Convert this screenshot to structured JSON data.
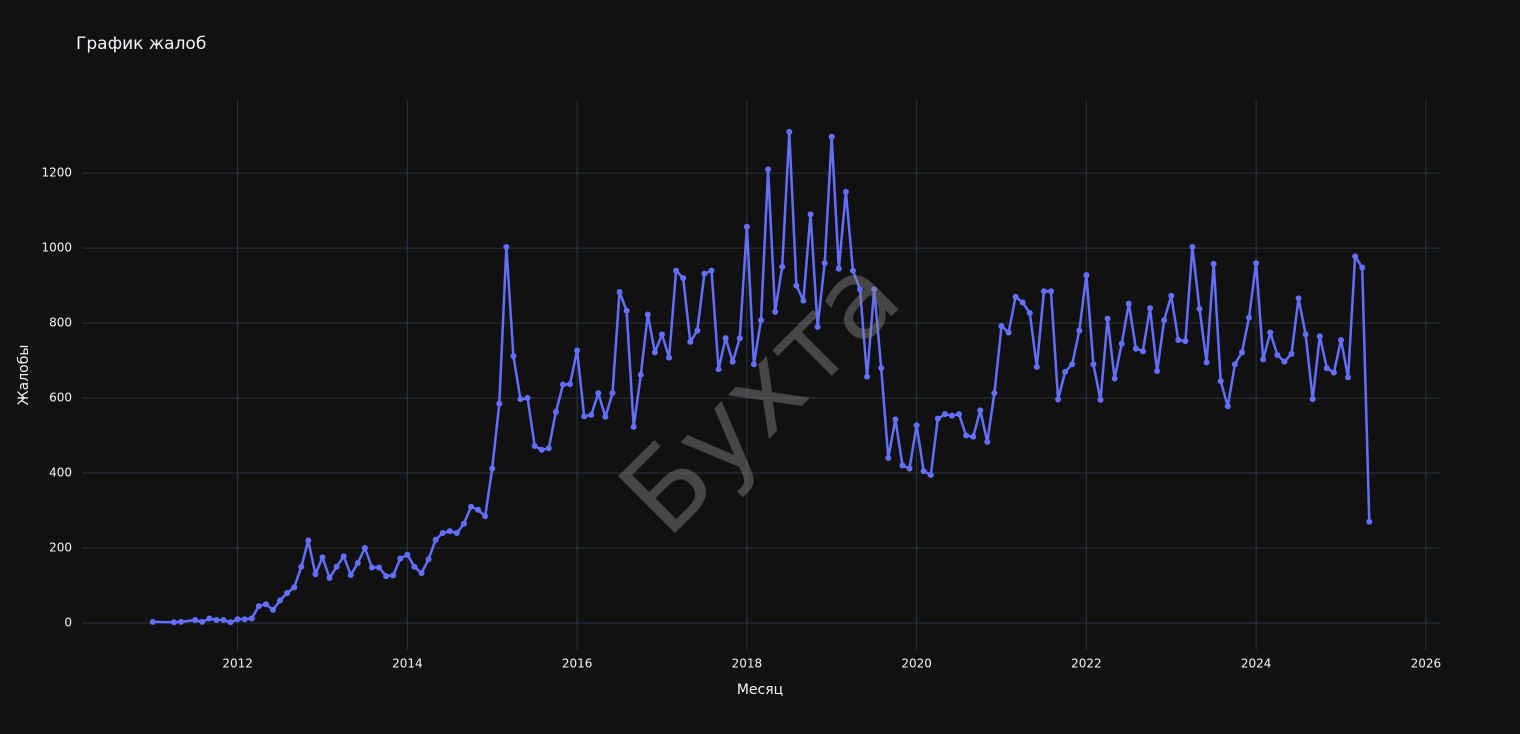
{
  "chart_data": {
    "type": "line",
    "title": "График жалоб",
    "xlabel": "Месяц",
    "ylabel": "Жалобы",
    "watermark": "Бухта",
    "color": "#636efa",
    "grid": true,
    "x": [
      "2011-01",
      "2011-04",
      "2011-05",
      "2011-07",
      "2011-08",
      "2011-09",
      "2011-10",
      "2011-11",
      "2011-12",
      "2012-01",
      "2012-02",
      "2012-03",
      "2012-04",
      "2012-05",
      "2012-06",
      "2012-07",
      "2012-08",
      "2012-09",
      "2012-10",
      "2012-11",
      "2012-12",
      "2013-01",
      "2013-02",
      "2013-03",
      "2013-04",
      "2013-05",
      "2013-06",
      "2013-07",
      "2013-08",
      "2013-09",
      "2013-10",
      "2013-11",
      "2013-12",
      "2014-01",
      "2014-02",
      "2014-03",
      "2014-04",
      "2014-05",
      "2014-06",
      "2014-07",
      "2014-08",
      "2014-09",
      "2014-10",
      "2014-11",
      "2014-12",
      "2015-01",
      "2015-02",
      "2015-03",
      "2015-04",
      "2015-05",
      "2015-06",
      "2015-07",
      "2015-08",
      "2015-09",
      "2015-10",
      "2015-11",
      "2015-12",
      "2016-01",
      "2016-02",
      "2016-03",
      "2016-04",
      "2016-05",
      "2016-06",
      "2016-07",
      "2016-08",
      "2016-09",
      "2016-10",
      "2016-11",
      "2016-12",
      "2017-01",
      "2017-02",
      "2017-03",
      "2017-04",
      "2017-05",
      "2017-06",
      "2017-07",
      "2017-08",
      "2017-09",
      "2017-10",
      "2017-11",
      "2017-12",
      "2018-01",
      "2018-02",
      "2018-03",
      "2018-04",
      "2018-05",
      "2018-06",
      "2018-07",
      "2018-08",
      "2018-09",
      "2018-10",
      "2018-11",
      "2018-12",
      "2019-01",
      "2019-02",
      "2019-03",
      "2019-04",
      "2019-05",
      "2019-06",
      "2019-07",
      "2019-08",
      "2019-09",
      "2019-10",
      "2019-11",
      "2019-12",
      "2020-01",
      "2020-02",
      "2020-03",
      "2020-04",
      "2020-05",
      "2020-06",
      "2020-07",
      "2020-08",
      "2020-09",
      "2020-10",
      "2020-11",
      "2020-12",
      "2021-01",
      "2021-02",
      "2021-03",
      "2021-04",
      "2021-05",
      "2021-06",
      "2021-07",
      "2021-08",
      "2021-09",
      "2021-10",
      "2021-11",
      "2021-12",
      "2022-01",
      "2022-02",
      "2022-03",
      "2022-04",
      "2022-05",
      "2022-06",
      "2022-07",
      "2022-08",
      "2022-09",
      "2022-10",
      "2022-11",
      "2022-12",
      "2023-01",
      "2023-02",
      "2023-03",
      "2023-04",
      "2023-05",
      "2023-06",
      "2023-07",
      "2023-08",
      "2023-09",
      "2023-10",
      "2023-11",
      "2023-12",
      "2024-01",
      "2024-02",
      "2024-03",
      "2024-04",
      "2024-05",
      "2024-06",
      "2024-07",
      "2024-08",
      "2024-09",
      "2024-10",
      "2024-11",
      "2024-12",
      "2025-01",
      "2025-02",
      "2025-03",
      "2025-04",
      "2025-05"
    ],
    "values": [
      3,
      2,
      3,
      8,
      3,
      12,
      8,
      8,
      2,
      10,
      10,
      12,
      45,
      50,
      35,
      60,
      80,
      95,
      150,
      220,
      130,
      175,
      120,
      150,
      178,
      128,
      160,
      200,
      148,
      148,
      125,
      127,
      172,
      182,
      150,
      133,
      170,
      222,
      240,
      245,
      240,
      265,
      310,
      302,
      285,
      412,
      585,
      1003,
      712,
      597,
      600,
      472,
      462,
      466,
      563,
      636,
      637,
      727,
      551,
      555,
      613,
      550,
      613,
      883,
      833,
      523,
      662,
      823,
      722,
      770,
      708,
      940,
      920,
      750,
      780,
      932,
      940,
      677,
      760,
      697,
      760,
      1057,
      690,
      808,
      1210,
      830,
      950,
      1310,
      900,
      860,
      1090,
      790,
      960,
      1297,
      945,
      1150,
      940,
      890,
      657,
      890,
      680,
      440,
      543,
      420,
      412,
      527,
      405,
      395,
      545,
      557,
      553,
      557,
      500,
      497,
      567,
      483,
      613,
      792,
      775,
      870,
      855,
      827,
      683,
      885,
      885,
      596,
      670,
      690,
      780,
      928,
      690,
      595,
      812,
      652,
      745,
      852,
      732,
      725,
      840,
      672,
      808,
      873,
      755,
      752,
      1003,
      838,
      695,
      958,
      645,
      578,
      690,
      722,
      815,
      960,
      703,
      775,
      715,
      697,
      718,
      866,
      770,
      597,
      765,
      680,
      668,
      755,
      655,
      978,
      948,
      270
    ],
    "xlim": [
      "2010-03",
      "2026-03"
    ],
    "xticks": [
      2012,
      2014,
      2016,
      2018,
      2020,
      2022,
      2024,
      2026
    ],
    "ylim": [
      -72,
      1395
    ],
    "yticks": [
      0,
      200,
      400,
      600,
      800,
      1000,
      1200
    ]
  }
}
